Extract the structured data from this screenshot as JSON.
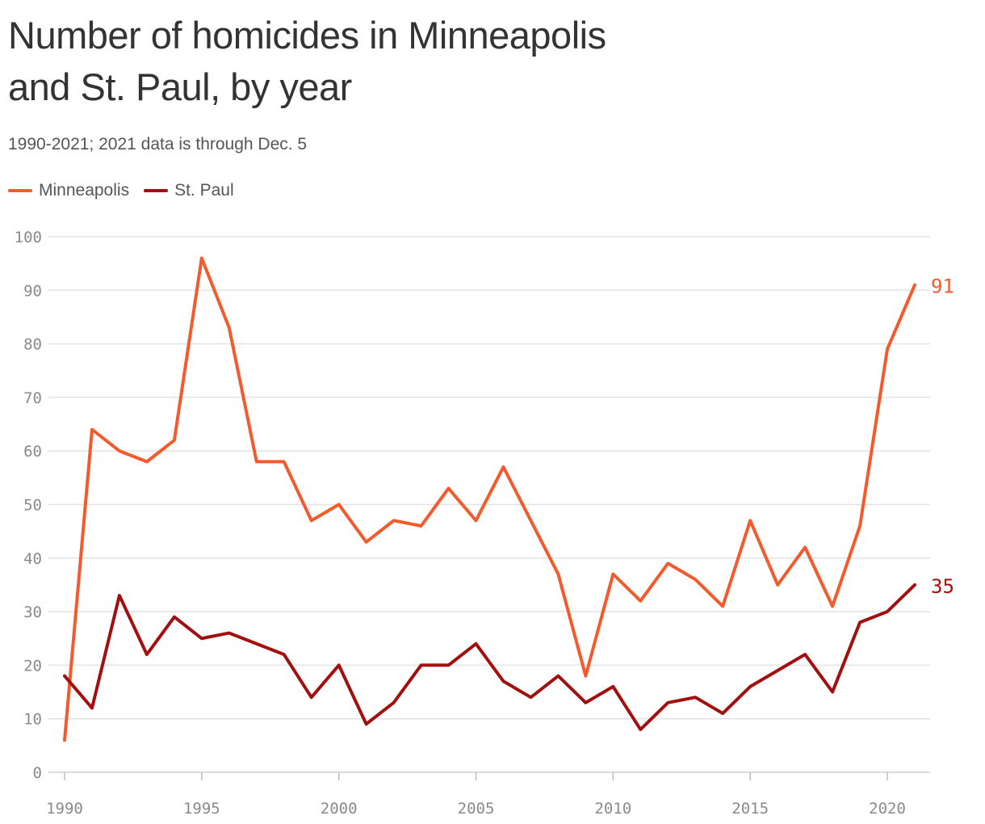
{
  "colors": {
    "minneapolis": "#f55a2c",
    "st_paul": "#a30e0e",
    "grid": "#e3e3e3",
    "tick": "#8a8a8a"
  },
  "chart_data": {
    "type": "line",
    "title": "Number of homicides in Minneapolis and St. Paul, by year",
    "title_lines": [
      "Number of homicides in Minneapolis",
      "and St. Paul, by year"
    ],
    "subtitle": "1990-2021; 2021 data is through Dec. 5",
    "xlabel": "",
    "ylabel": "",
    "xlim": [
      1990,
      2021
    ],
    "ylim": [
      0,
      100
    ],
    "x_ticks": [
      1990,
      1995,
      2000,
      2005,
      2010,
      2015,
      2020
    ],
    "y_ticks": [
      0,
      10,
      20,
      30,
      40,
      50,
      60,
      70,
      80,
      90,
      100
    ],
    "grid": true,
    "legend_position": "top-left",
    "x": [
      1990,
      1991,
      1992,
      1993,
      1994,
      1995,
      1996,
      1997,
      1998,
      1999,
      2000,
      2001,
      2002,
      2003,
      2004,
      2005,
      2006,
      2007,
      2008,
      2009,
      2010,
      2011,
      2012,
      2013,
      2014,
      2015,
      2016,
      2017,
      2018,
      2019,
      2020,
      2021
    ],
    "series": [
      {
        "name": "Minneapolis",
        "color_key": "minneapolis",
        "end_label": "91",
        "values": [
          6,
          64,
          60,
          58,
          62,
          96,
          83,
          58,
          58,
          47,
          50,
          43,
          47,
          46,
          53,
          47,
          57,
          47,
          37,
          18,
          37,
          32,
          39,
          36,
          31,
          47,
          35,
          42,
          31,
          46,
          79,
          91
        ]
      },
      {
        "name": "St. Paul",
        "color_key": "st_paul",
        "end_label": "35",
        "values": [
          18,
          12,
          33,
          22,
          29,
          25,
          26,
          24,
          22,
          14,
          20,
          9,
          13,
          20,
          20,
          24,
          17,
          14,
          18,
          13,
          16,
          8,
          13,
          14,
          11,
          16,
          19,
          22,
          15,
          28,
          30,
          35
        ]
      }
    ]
  }
}
